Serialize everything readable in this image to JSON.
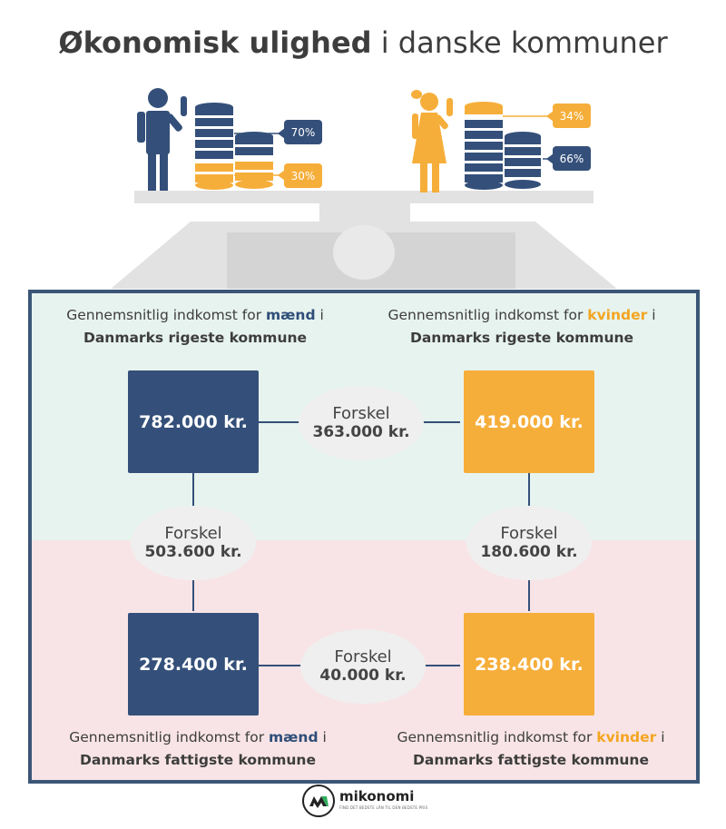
{
  "title": {
    "bold": "Økonomisk ulighed",
    "rest": " i danske kommuner"
  },
  "illustration": {
    "man_tags": {
      "top": "70%",
      "bottom": "30%"
    },
    "woman_tags": {
      "top": "34%",
      "bottom": "66%"
    },
    "colors": {
      "blue": "#34507a",
      "orange": "#f6ae3a",
      "gray": "#e2e2e2"
    }
  },
  "captions": {
    "top_left": {
      "prefix": "Gennemsnitlig indkomst for ",
      "word": "mænd",
      "suffix": " i",
      "line2": "Danmarks rigeste kommune"
    },
    "top_right": {
      "prefix": "Gennemsnitlig indkomst for ",
      "word": "kvinder",
      "suffix": " i",
      "line2": "Danmarks rigeste kommune"
    },
    "bottom_left": {
      "prefix": "Gennemsnitlig indkomst for ",
      "word": "mænd",
      "suffix": " i",
      "line2": "Danmarks fattigste kommune"
    },
    "bottom_right": {
      "prefix": "Gennemsnitlig indkomst for ",
      "word": "kvinder",
      "suffix": " i",
      "line2": "Danmarks fattigste kommune"
    }
  },
  "boxes": {
    "rich_men": "782.000 kr.",
    "rich_women": "419.000 kr.",
    "poor_men": "278.400 kr.",
    "poor_women": "238.400 kr."
  },
  "differences": {
    "label": "Forskel",
    "rich_gender": "363.000 kr.",
    "men_region": "503.600 kr.",
    "women_region": "180.600 kr.",
    "poor_gender": "40.000 kr."
  },
  "logo": {
    "name": "mikonomi",
    "tagline": "FIND DET BEDSTE LÅN TIL DEN BEDSTE PRIS"
  }
}
